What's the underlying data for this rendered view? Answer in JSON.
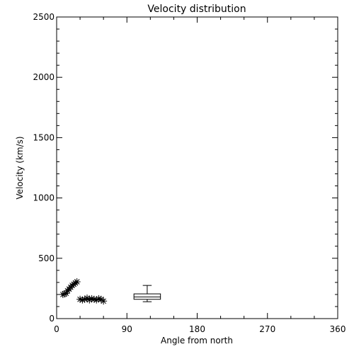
{
  "chart_data": {
    "type": "scatter",
    "title": "Velocity distribution",
    "xlabel": "Angle from north",
    "ylabel": "Velocity (km/s)",
    "xlim": [
      0,
      360
    ],
    "ylim": [
      0,
      2500
    ],
    "xticks": [
      0,
      90,
      180,
      270,
      360
    ],
    "yticks": [
      0,
      500,
      1000,
      1500,
      2000,
      2500
    ],
    "grid": false,
    "marker": "asterisk",
    "points": [
      {
        "x": 8,
        "y": 200
      },
      {
        "x": 10,
        "y": 205
      },
      {
        "x": 12,
        "y": 210
      },
      {
        "x": 14,
        "y": 230
      },
      {
        "x": 16,
        "y": 245
      },
      {
        "x": 18,
        "y": 260
      },
      {
        "x": 20,
        "y": 275
      },
      {
        "x": 22,
        "y": 285
      },
      {
        "x": 24,
        "y": 295
      },
      {
        "x": 26,
        "y": 305
      },
      {
        "x": 30,
        "y": 160
      },
      {
        "x": 33,
        "y": 155
      },
      {
        "x": 36,
        "y": 160
      },
      {
        "x": 39,
        "y": 170
      },
      {
        "x": 42,
        "y": 155
      },
      {
        "x": 45,
        "y": 165
      },
      {
        "x": 48,
        "y": 160
      },
      {
        "x": 51,
        "y": 155
      },
      {
        "x": 54,
        "y": 165
      },
      {
        "x": 57,
        "y": 160
      },
      {
        "x": 60,
        "y": 145
      }
    ],
    "boxplot": {
      "x_center": 116,
      "x_width": 34,
      "whisker_low": 140,
      "q1": 160,
      "median": 180,
      "q3": 205,
      "whisker_high": 275
    },
    "colors": {
      "foreground": "#000000",
      "background": "#ffffff"
    }
  }
}
